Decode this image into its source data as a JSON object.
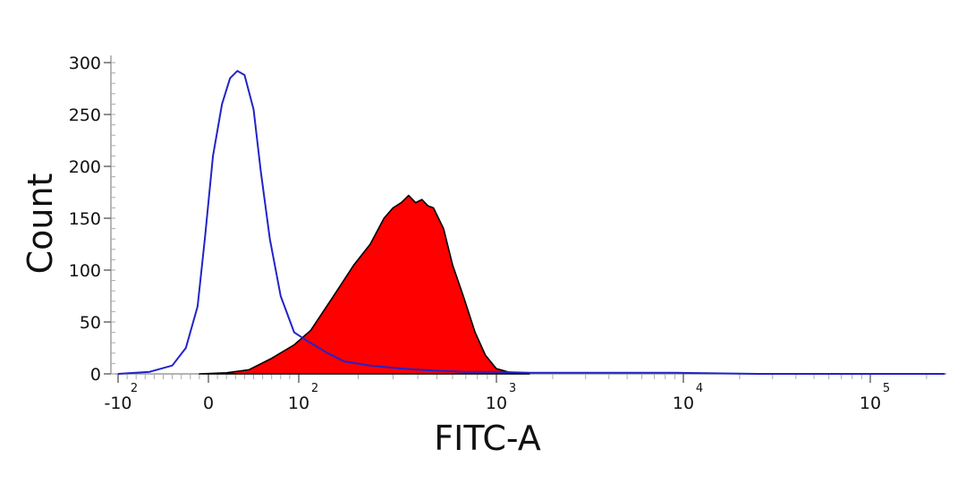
{
  "chart_data": {
    "type": "area",
    "xlabel": "FITC-A",
    "ylabel": "Count",
    "x_scale": "biexponential",
    "xlim": [
      -100,
      250000
    ],
    "ylim": [
      0,
      300
    ],
    "grid": false,
    "legend": "none",
    "y_ticks": [
      "0",
      "50",
      "100",
      "150",
      "200",
      "250",
      "300"
    ],
    "x_ticks": [
      {
        "base": "-10",
        "exp": "2",
        "value": -100
      },
      {
        "base": "0",
        "exp": "",
        "value": 0
      },
      {
        "base": "10",
        "exp": "2",
        "value": 100
      },
      {
        "base": "10",
        "exp": "3",
        "value": 1000
      },
      {
        "base": "10",
        "exp": "4",
        "value": 10000
      },
      {
        "base": "10",
        "exp": "5",
        "value": 100000
      }
    ],
    "series": [
      {
        "style": "outline",
        "color": "#2323c8",
        "points": [
          [
            -100,
            0
          ],
          [
            -65,
            2
          ],
          [
            -40,
            8
          ],
          [
            -25,
            25
          ],
          [
            -12,
            65
          ],
          [
            -4,
            130
          ],
          [
            5,
            210
          ],
          [
            15,
            260
          ],
          [
            24,
            285
          ],
          [
            32,
            292
          ],
          [
            40,
            288
          ],
          [
            50,
            255
          ],
          [
            58,
            195
          ],
          [
            68,
            130
          ],
          [
            80,
            75
          ],
          [
            95,
            40
          ],
          [
            110,
            32
          ],
          [
            140,
            20
          ],
          [
            170,
            12
          ],
          [
            230,
            8
          ],
          [
            340,
            5
          ],
          [
            500,
            3
          ],
          [
            700,
            2
          ],
          [
            1000,
            2
          ],
          [
            1500,
            1
          ],
          [
            5000,
            1
          ],
          [
            9000,
            1
          ],
          [
            25000,
            0
          ],
          [
            250000,
            0
          ]
        ]
      },
      {
        "style": "filled",
        "color": "#ff0000",
        "points": [
          [
            -10,
            0
          ],
          [
            20,
            1
          ],
          [
            45,
            4
          ],
          [
            70,
            15
          ],
          [
            95,
            28
          ],
          [
            115,
            42
          ],
          [
            150,
            75
          ],
          [
            190,
            105
          ],
          [
            230,
            125
          ],
          [
            270,
            150
          ],
          [
            300,
            160
          ],
          [
            330,
            165
          ],
          [
            360,
            172
          ],
          [
            390,
            165
          ],
          [
            420,
            168
          ],
          [
            450,
            162
          ],
          [
            480,
            160
          ],
          [
            540,
            140
          ],
          [
            600,
            105
          ],
          [
            680,
            75
          ],
          [
            780,
            40
          ],
          [
            880,
            18
          ],
          [
            1000,
            5
          ],
          [
            1200,
            1
          ],
          [
            1500,
            0
          ]
        ]
      }
    ]
  }
}
